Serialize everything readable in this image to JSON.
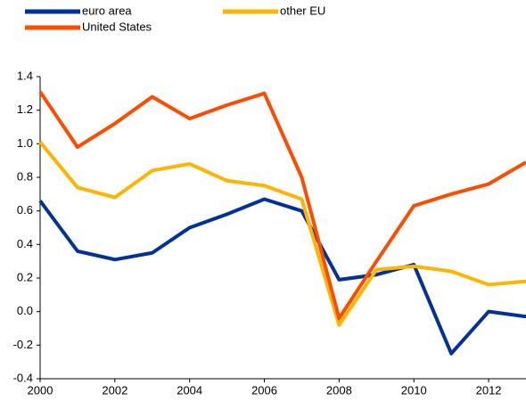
{
  "chart_data": {
    "type": "line",
    "x": [
      2000,
      2001,
      2002,
      2003,
      2004,
      2005,
      2006,
      2007,
      2008,
      2009,
      2010,
      2011,
      2012,
      2013
    ],
    "series": [
      {
        "name": "euro area",
        "color": "#003299",
        "values": [
          0.66,
          0.36,
          0.31,
          0.35,
          0.5,
          0.58,
          0.67,
          0.6,
          0.19,
          0.22,
          0.28,
          -0.25,
          0.0,
          -0.03
        ]
      },
      {
        "name": "other EU",
        "color": "#ffb400",
        "values": [
          1.01,
          0.74,
          0.68,
          0.84,
          0.88,
          0.78,
          0.75,
          0.67,
          -0.08,
          0.25,
          0.27,
          0.24,
          0.16,
          0.18
        ]
      },
      {
        "name": "United States",
        "color": "#ff4b00",
        "values": [
          1.31,
          0.98,
          1.12,
          1.28,
          1.15,
          1.23,
          1.3,
          0.8,
          -0.04,
          0.3,
          0.63,
          0.7,
          0.76,
          0.89
        ]
      }
    ],
    "xlim": [
      2000,
      2013
    ],
    "xticks": [
      2000,
      2002,
      2004,
      2006,
      2008,
      2010,
      2012
    ],
    "ylim": [
      -0.4,
      1.4
    ],
    "yticks": [
      {
        "value": -0.4,
        "label": "-0.4"
      },
      {
        "value": -0.2,
        "label": "-0.2"
      },
      {
        "value": 0,
        "label": "0.0"
      },
      {
        "value": 0.2,
        "label": "0.2"
      },
      {
        "value": 0.4,
        "label": "0.4"
      },
      {
        "value": 0.6,
        "label": "0.6"
      },
      {
        "value": 0.8,
        "label": "0.8"
      },
      {
        "value": 1.0,
        "label": "1.0"
      },
      {
        "value": 1.2,
        "label": "1.2"
      },
      {
        "value": 1.4,
        "label": "1.4"
      }
    ],
    "grid": false
  }
}
